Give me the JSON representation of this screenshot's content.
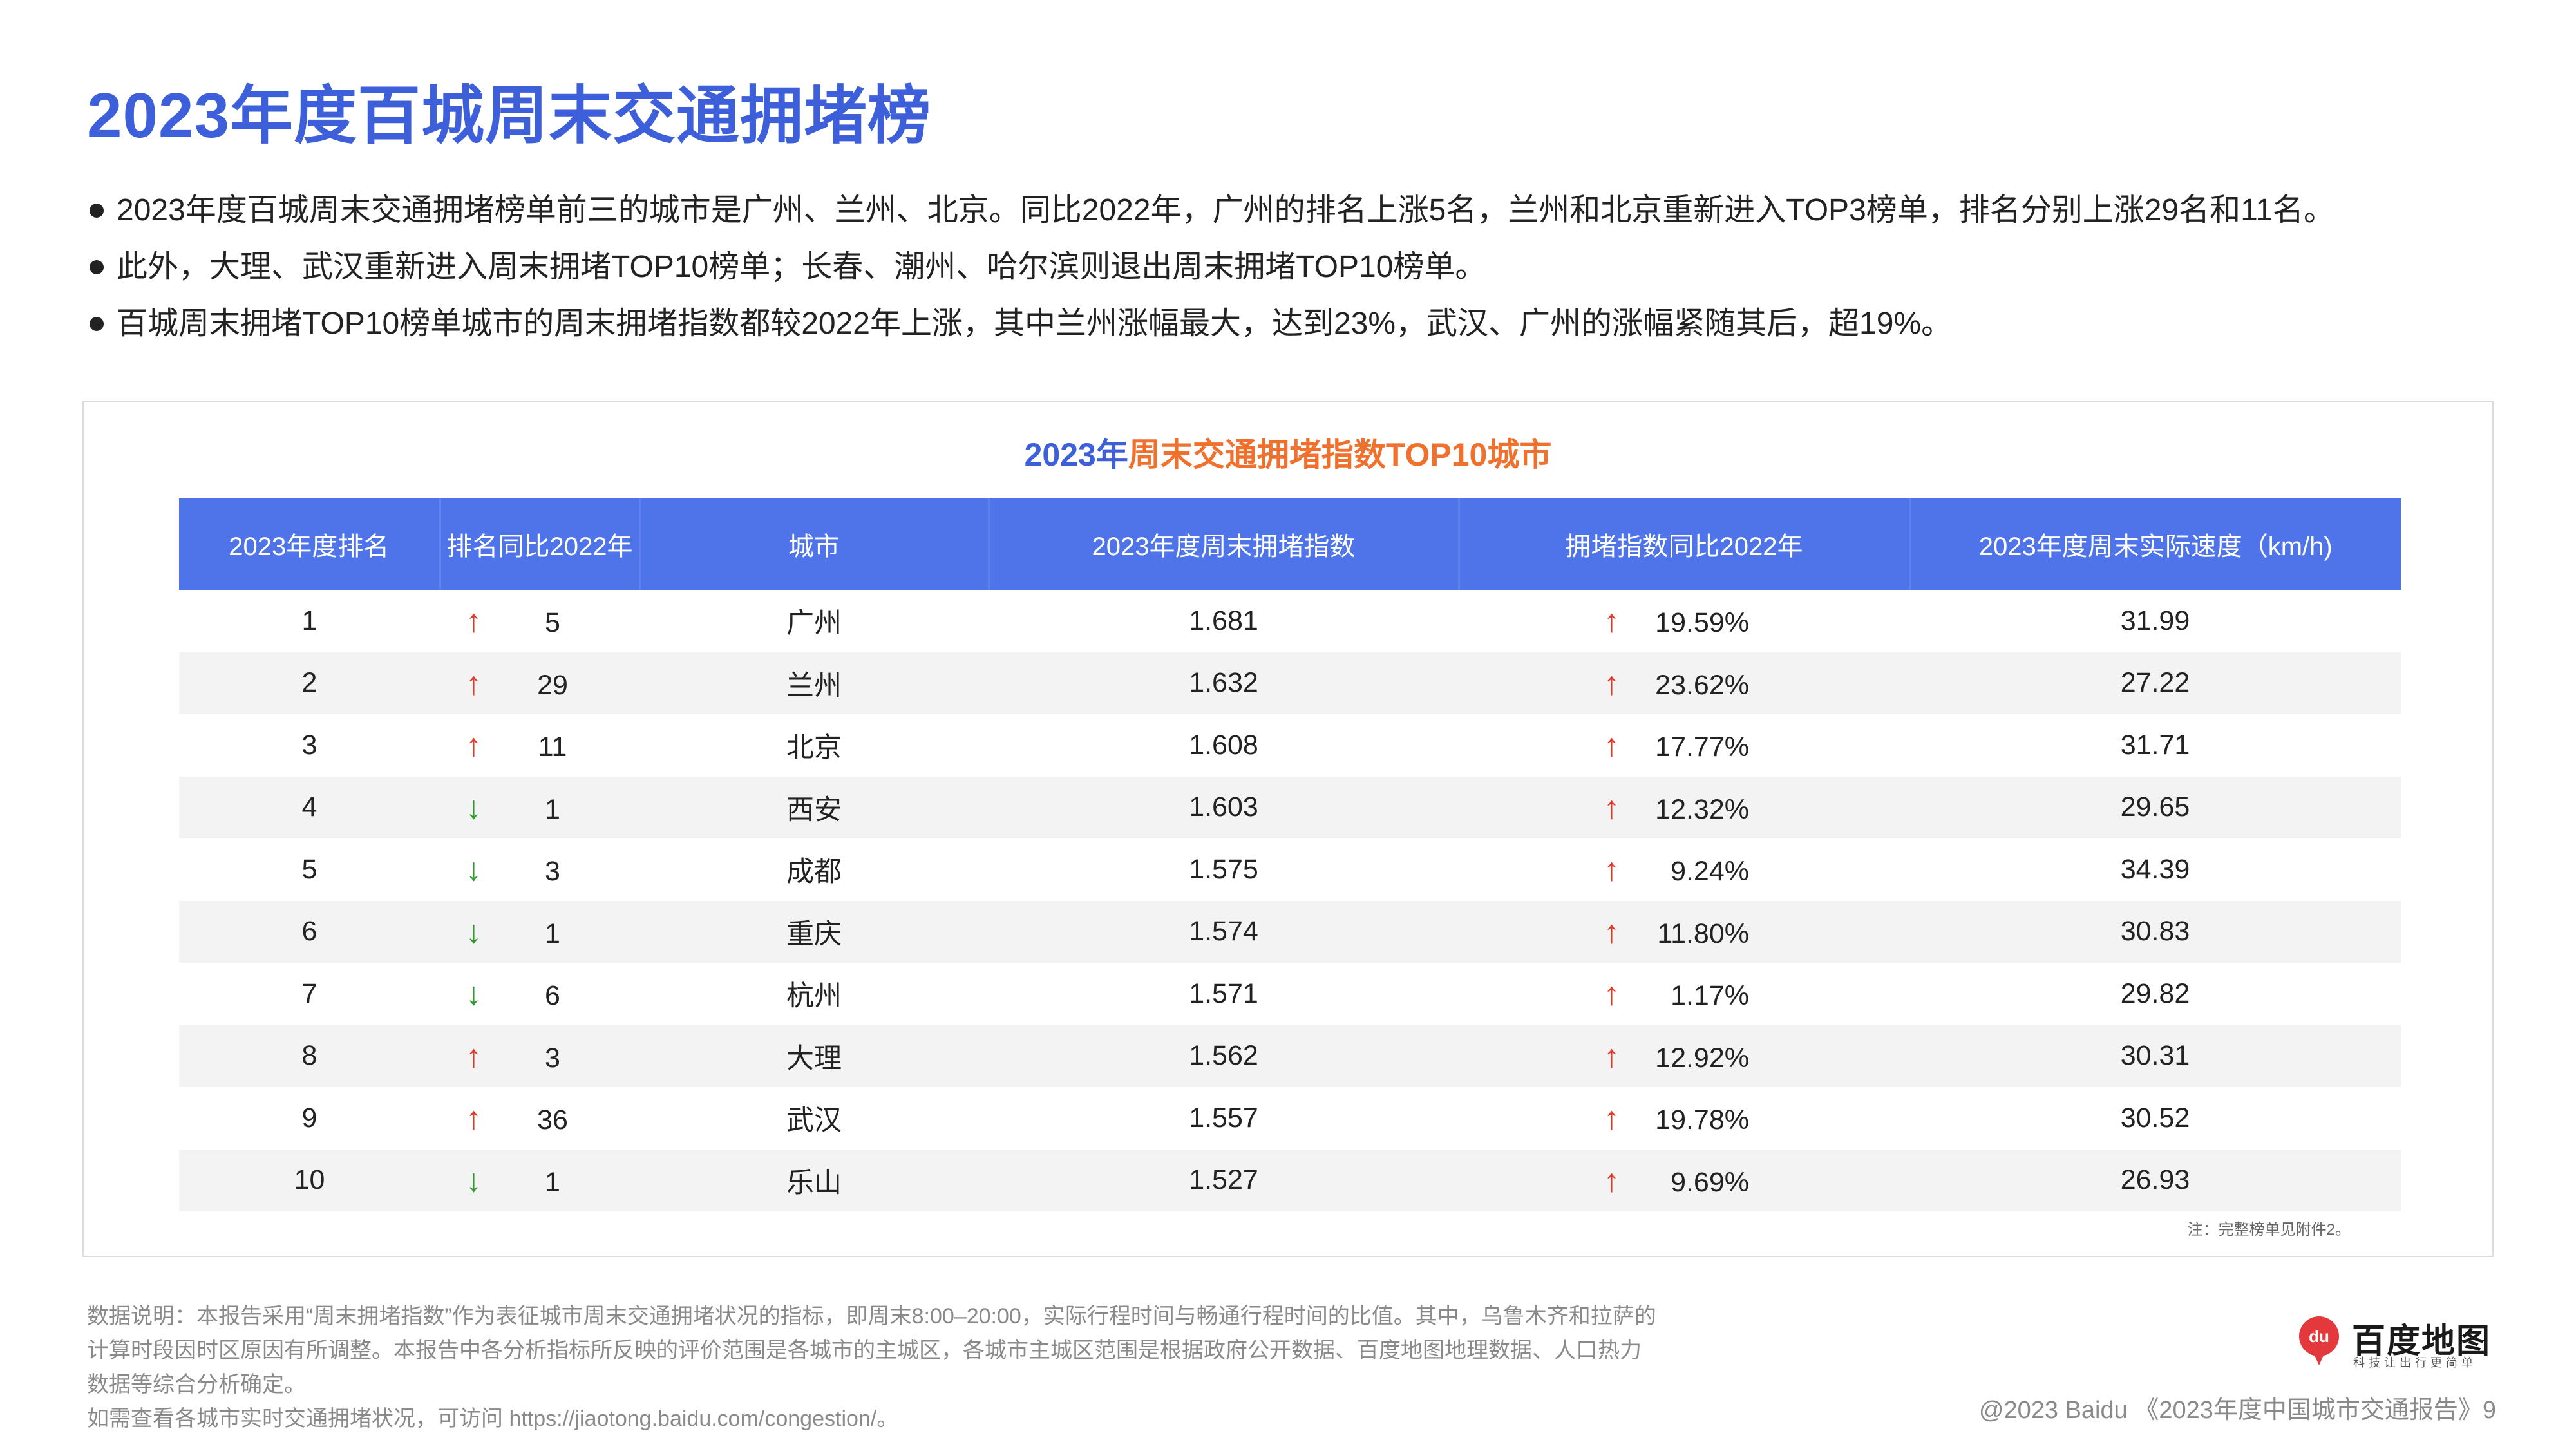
{
  "title": "2023年度百城周末交通拥堵榜",
  "bullets": [
    "2023年度百城周末交通拥堵榜单前三的城市是广州、兰州、北京。同比2022年，广州的排名上涨5名，兰州和北京重新进入TOP3榜单，排名分别上涨29名和11名。",
    "此外，大理、武汉重新进入周末拥堵TOP10榜单；长春、潮州、哈尔滨则退出周末拥堵TOP10榜单。",
    "百城周末拥堵TOP10榜单城市的周末拥堵指数都较2022年上涨，其中兰州涨幅最大，达到23%，武汉、广州的涨幅紧随其后，超19%。"
  ],
  "table": {
    "title_part1": "2023年",
    "title_part2": "周末交通拥堵指数TOP10城市",
    "headers": [
      "2023年度排名",
      "排名同比2022年",
      "城市",
      "2023年度周末拥堵指数",
      "拥堵指数同比2022年",
      "2023年度周末实际速度（km/h)"
    ],
    "rows": [
      {
        "rank": "1",
        "rank_dir": "up",
        "rank_change": "5",
        "city": "广州",
        "index": "1.681",
        "index_dir": "up",
        "index_change": "19.59%",
        "speed": "31.99"
      },
      {
        "rank": "2",
        "rank_dir": "up",
        "rank_change": "29",
        "city": "兰州",
        "index": "1.632",
        "index_dir": "up",
        "index_change": "23.62%",
        "speed": "27.22"
      },
      {
        "rank": "3",
        "rank_dir": "up",
        "rank_change": "11",
        "city": "北京",
        "index": "1.608",
        "index_dir": "up",
        "index_change": "17.77%",
        "speed": "31.71"
      },
      {
        "rank": "4",
        "rank_dir": "down",
        "rank_change": "1",
        "city": "西安",
        "index": "1.603",
        "index_dir": "up",
        "index_change": "12.32%",
        "speed": "29.65"
      },
      {
        "rank": "5",
        "rank_dir": "down",
        "rank_change": "3",
        "city": "成都",
        "index": "1.575",
        "index_dir": "up",
        "index_change": "9.24%",
        "speed": "34.39"
      },
      {
        "rank": "6",
        "rank_dir": "down",
        "rank_change": "1",
        "city": "重庆",
        "index": "1.574",
        "index_dir": "up",
        "index_change": "11.80%",
        "speed": "30.83"
      },
      {
        "rank": "7",
        "rank_dir": "down",
        "rank_change": "6",
        "city": "杭州",
        "index": "1.571",
        "index_dir": "up",
        "index_change": "1.17%",
        "speed": "29.82"
      },
      {
        "rank": "8",
        "rank_dir": "up",
        "rank_change": "3",
        "city": "大理",
        "index": "1.562",
        "index_dir": "up",
        "index_change": "12.92%",
        "speed": "30.31"
      },
      {
        "rank": "9",
        "rank_dir": "up",
        "rank_change": "36",
        "city": "武汉",
        "index": "1.557",
        "index_dir": "up",
        "index_change": "19.78%",
        "speed": "30.52"
      },
      {
        "rank": "10",
        "rank_dir": "down",
        "rank_change": "1",
        "city": "乐山",
        "index": "1.527",
        "index_dir": "up",
        "index_change": "9.69%",
        "speed": "26.93"
      }
    ],
    "note": "注：完整榜单见附件2。"
  },
  "footnote": [
    "数据说明：本报告采用“周末拥堵指数”作为表征城市周末交通拥堵状况的指标，即周末8:00–20:00，实际行程时间与畅通行程时间的比值。其中，乌鲁木齐和拉萨的计算时段因时区原因有所调整。本报告中各分析指标所反映的评价范围是各城市的主城区，各城市主城区范围是根据政府公开数据、百度地图地理数据、人口热力数据等综合分析确定。",
    "如需查看各城市实时交通拥堵状况，可访问 https://jiaotong.baidu.com/congestion/。"
  ],
  "logo": {
    "pin_text": "du",
    "name": "百度地图",
    "slogan": "科技让出行更简单"
  },
  "copyright": "@2023 Baidu 《2023年度中国城市交通报告》9",
  "colors": {
    "title_blue": "#3d5fd9",
    "header_blue": "#4f73e8",
    "accent_orange": "#f0702e",
    "up_red": "#e23a2a",
    "down_green": "#2d9c2d"
  },
  "icons": {
    "up": "up-arrow-icon",
    "down": "down-arrow-icon"
  }
}
